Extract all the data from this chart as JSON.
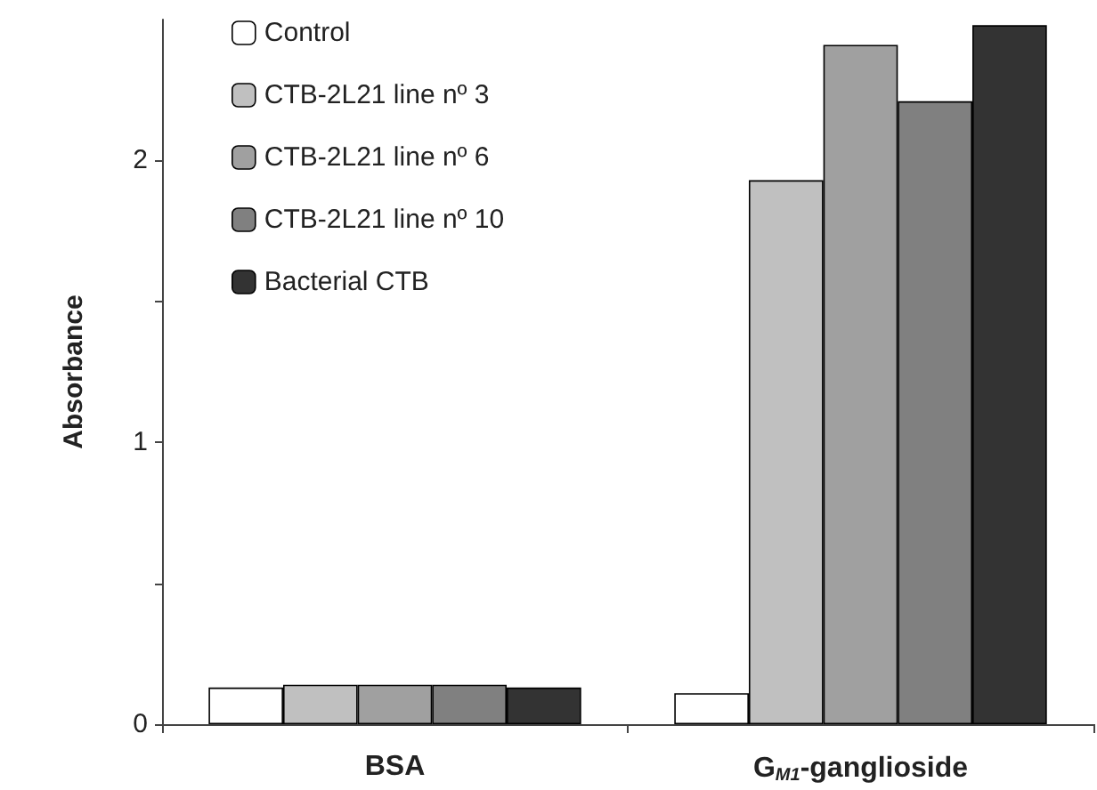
{
  "chart_data": {
    "type": "bar",
    "ylabel": "Absorbance",
    "categories": [
      "BSA",
      "G$_{M1}$-ganglioside"
    ],
    "series": [
      {
        "name": "Control",
        "color": "#ffffff",
        "values": [
          0.13,
          0.11
        ]
      },
      {
        "name": "CTB-2L21 line nº 3",
        "color": "#c0c0c0",
        "values": [
          0.14,
          1.93
        ]
      },
      {
        "name": "CTB-2L21 line nº 6",
        "color": "#a0a0a0",
        "values": [
          0.14,
          2.41
        ]
      },
      {
        "name": "CTB-2L21 line nº 10",
        "color": "#808080",
        "values": [
          0.14,
          2.21
        ]
      },
      {
        "name": "Bacterial CTB",
        "color": "#333333",
        "values": [
          0.13,
          2.48
        ]
      }
    ],
    "ylim": [
      0,
      2.5
    ],
    "yticks": [
      0,
      {
        "value": 0.5,
        "label": null
      },
      1,
      {
        "value": 1.5,
        "label": null
      },
      2
    ],
    "grid": false,
    "legend": "top left"
  }
}
